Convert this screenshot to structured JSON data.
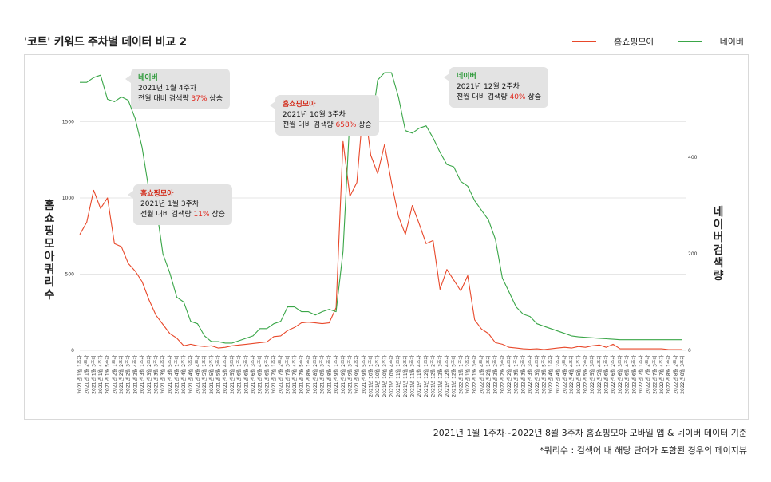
{
  "title": "'코트' 키워드 주차별 데이터 비교 2",
  "legend": [
    {
      "name": "홈쇼핑모아",
      "color": "#e8482a"
    },
    {
      "name": "네이버",
      "color": "#3aa648"
    }
  ],
  "footnotes": {
    "source": "2021년 1월 1주차~2022년 8월 3주차 홈쇼핑모아 모바일 앱 & 네이버 데이터 기준",
    "definition": "*쿼리수 : 검색어 내 해당 단어가 포함된 경우의 페이지뷰"
  },
  "callouts": [
    {
      "source": "네이버",
      "week": "2021년 1월 4주차",
      "text_before": "전월 대비 검색량 ",
      "pct": "37%",
      "text_after": " 상승"
    },
    {
      "source": "홈쇼핑모아",
      "week": "2021년 1월 3주차",
      "text_before": "전월 대비 검색량 ",
      "pct": "11%",
      "text_after": " 상승"
    },
    {
      "source": "홈쇼핑모아",
      "week": "2021년 10월 3주차",
      "text_before": "전월 대비 검색량 ",
      "pct": "658%",
      "text_after": " 상승"
    },
    {
      "source": "네이버",
      "week": "2021년 12월 2주차",
      "text_before": "전월 대비 검색량 ",
      "pct": "40%",
      "text_after": " 상승"
    }
  ],
  "chart_data": {
    "type": "line",
    "y_left_label": "홈쇼핑모아 쿼리수",
    "y_right_label": "네이버 검색량",
    "y_left_ticks": [
      0,
      500,
      1000,
      1500
    ],
    "y_right_ticks": [
      0,
      200,
      400
    ],
    "y_left_lim": [
      0,
      1900
    ],
    "y_right_lim": [
      0,
      600
    ],
    "grid": true,
    "x": [
      "2021년 1월 1주차",
      "2021년 1월 2주차",
      "2021년 1월 3주차",
      "2021년 1월 4주차",
      "2021년 1월 5주차",
      "2021년 2월 1주차",
      "2021년 2월 2주차",
      "2021년 2월 3주차",
      "2021년 2월 4주차",
      "2021년 3월 1주차",
      "2021년 3월 2주차",
      "2021년 3월 3주차",
      "2021년 3월 4주차",
      "2021년 3월 5주차",
      "2021년 4월 1주차",
      "2021년 4월 2주차",
      "2021년 4월 3주차",
      "2021년 4월 4주차",
      "2021년 5월 1주차",
      "2021년 5월 2주차",
      "2021년 5월 3주차",
      "2021년 5월 4주차",
      "2021년 5월 5주차",
      "2021년 6월 1주차",
      "2021년 6월 2주차",
      "2021년 6월 3주차",
      "2021년 6월 4주차",
      "2021년 6월 5주차",
      "2021년 7월 1주차",
      "2021년 7월 2주차",
      "2021년 7월 3주차",
      "2021년 7월 4주차",
      "2021년 7월 5주차",
      "2021년 8월 1주차",
      "2021년 8월 2주차",
      "2021년 8월 3주차",
      "2021년 8월 4주차",
      "2021년 9월 1주차",
      "2021년 9월 2주차",
      "2021년 9월 3주차",
      "2021년 9월 4주차",
      "2021년 9월 5주차",
      "2021년 10월 1주차",
      "2021년 10월 2주차",
      "2021년 10월 3주차",
      "2021년 10월 4주차",
      "2021년 11월 1주차",
      "2021년 11월 2주차",
      "2021년 11월 3주차",
      "2021년 11월 4주차",
      "2021년 12월 1주차",
      "2021년 12월 2주차",
      "2021년 12월 3주차",
      "2021년 12월 4주차",
      "2021년 12월 5주차",
      "2022년 1월 1주차",
      "2022년 1월 2주차",
      "2022년 1월 3주차",
      "2022년 1월 4주차",
      "2022년 2월 1주차",
      "2022년 2월 2주차",
      "2022년 2월 3주차",
      "2022년 2월 4주차",
      "2022년 3월 1주차",
      "2022년 3월 2주차",
      "2022년 3월 3주차",
      "2022년 3월 4주차",
      "2022년 3월 5주차",
      "2022년 4월 1주차",
      "2022년 4월 2주차",
      "2022년 4월 3주차",
      "2022년 4월 4주차",
      "2022년 5월 1주차",
      "2022년 5월 2주차",
      "2022년 5월 3주차",
      "2022년 5월 4주차",
      "2022년 6월 1주차",
      "2022년 6월 2주차",
      "2022년 6월 3주차",
      "2022년 6월 4주차",
      "2022년 6월 5주차",
      "2022년 7월 1주차",
      "2022년 7월 2주차",
      "2022년 7월 3주차",
      "2022년 7월 4주차",
      "2022년 8월 1주차",
      "2022년 8월 2주차",
      "2022년 8월 3주차"
    ],
    "series": [
      {
        "name": "홈쇼핑모아",
        "axis": "left",
        "color": "#e8482a",
        "values": [
          760,
          840,
          1050,
          930,
          1000,
          700,
          680,
          570,
          520,
          450,
          330,
          230,
          170,
          110,
          80,
          30,
          40,
          30,
          25,
          30,
          15,
          20,
          30,
          35,
          40,
          45,
          50,
          55,
          90,
          95,
          130,
          150,
          180,
          185,
          180,
          175,
          180,
          280,
          1370,
          1010,
          1100,
          1640,
          1280,
          1160,
          1350,
          1100,
          880,
          760,
          950,
          830,
          700,
          720,
          400,
          530,
          460,
          390,
          490,
          200,
          140,
          110,
          50,
          40,
          20,
          15,
          10,
          8,
          10,
          5,
          10,
          15,
          20,
          15,
          25,
          20,
          30,
          35,
          20,
          40,
          10,
          10,
          10,
          10,
          10,
          10,
          10,
          5,
          5,
          5
        ],
        "display_values": [
          760,
          840,
          1050,
          930,
          1000,
          700,
          680,
          570,
          520,
          450,
          330,
          230,
          170,
          110,
          80,
          30,
          40,
          30,
          25,
          30,
          15,
          20,
          30,
          35,
          40,
          45,
          50,
          55,
          90,
          95,
          130,
          150,
          180,
          185,
          180,
          175,
          180,
          280,
          1370,
          1010,
          1100,
          1640,
          1280,
          1160,
          1350,
          1100,
          880,
          760,
          950,
          830,
          700,
          720,
          400,
          530,
          460,
          390,
          490,
          200,
          140,
          110,
          50,
          40,
          20,
          15,
          10,
          8,
          10,
          5,
          10,
          15,
          20,
          15,
          25,
          20,
          30,
          35,
          20,
          40,
          10,
          10,
          10,
          10,
          10,
          10,
          10,
          5,
          5,
          5
        ]
      },
      {
        "name": "네이버",
        "axis": "right",
        "color": "#3aa648",
        "values": [
          555,
          555,
          565,
          570,
          520,
          515,
          525,
          518,
          480,
          420,
          330,
          300,
          200,
          160,
          110,
          100,
          60,
          55,
          30,
          18,
          18,
          15,
          15,
          20,
          25,
          30,
          45,
          45,
          55,
          60,
          90,
          90,
          80,
          80,
          73,
          80,
          85,
          80,
          205,
          485,
          500,
          520,
          455,
          560,
          575,
          575,
          525,
          455,
          450,
          460,
          465,
          440,
          410,
          385,
          380,
          350,
          340,
          310,
          290,
          270,
          230,
          150,
          120,
          90,
          75,
          70,
          55,
          50,
          45,
          40,
          35,
          30,
          28,
          27,
          26,
          25,
          24,
          23,
          22,
          22,
          22,
          22,
          22,
          22,
          22,
          22,
          22,
          22
        ],
        "display_values": [
          555,
          555,
          565,
          570,
          520,
          515,
          525,
          518,
          480,
          420,
          330,
          300,
          200,
          160,
          110,
          100,
          60,
          55,
          30,
          18,
          18,
          15,
          15,
          20,
          25,
          30,
          45,
          45,
          55,
          60,
          90,
          90,
          80,
          80,
          73,
          80,
          85,
          80,
          205,
          485,
          500,
          520,
          455,
          560,
          575,
          575,
          525,
          455,
          450,
          460,
          465,
          440,
          410,
          385,
          380,
          350,
          340,
          310,
          290,
          270,
          230,
          150,
          120,
          90,
          75,
          70,
          55,
          50,
          45,
          40,
          35,
          30,
          28,
          27,
          26,
          25,
          24,
          23,
          22,
          22,
          22,
          22,
          22,
          22,
          22,
          22,
          22,
          22
        ]
      }
    ]
  }
}
